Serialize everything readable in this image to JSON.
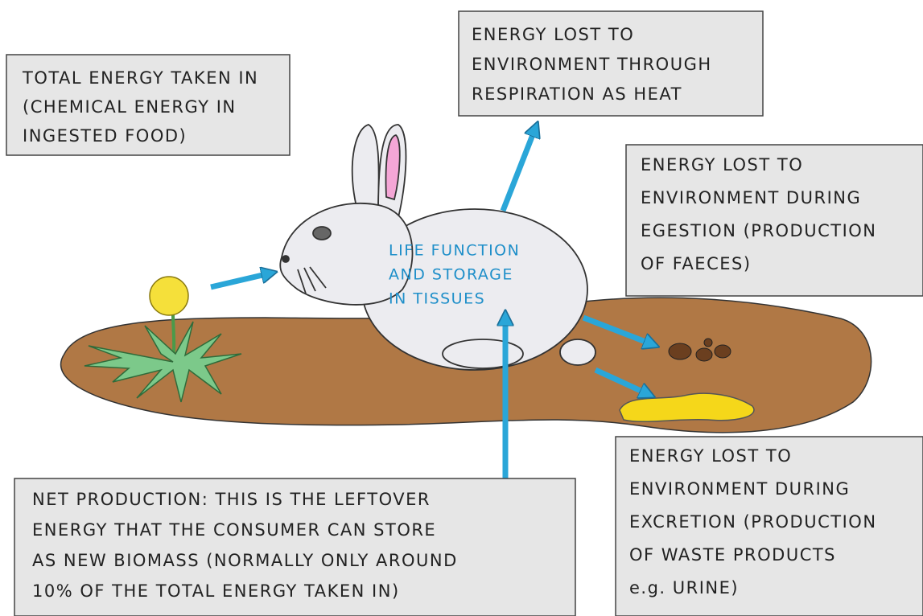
{
  "boxes": [
    {
      "lines": [
        "TOTAL ENERGY TAKEN IN",
        "(CHEMICAL ENERGY IN",
        "INGESTED FOOD)"
      ]
    },
    {
      "lines": [
        "ENERGY LOST TO",
        "ENVIRONMENT THROUGH",
        "RESPIRATION AS HEAT"
      ]
    },
    {
      "lines": [
        "ENERGY LOST TO",
        "ENVIRONMENT DURING",
        "EGESTION (PRODUCTION",
        "OF FAECES)"
      ]
    },
    {
      "lines": [
        "ENERGY LOST TO",
        "ENVIRONMENT DURING",
        "EXCRETION (PRODUCTION",
        "OF WASTE PRODUCTS",
        "e.g. URINE)"
      ]
    },
    {
      "lines": [
        "NET PRODUCTION: THIS IS THE LEFTOVER",
        "ENERGY THAT THE CONSUMER CAN STORE",
        "AS NEW BIOMASS (NORMALLY ONLY AROUND",
        "10% OF THE TOTAL ENERGY TAKEN IN)"
      ]
    }
  ],
  "center_label": {
    "lines": [
      "LIFE FUNCTION",
      "AND STORAGE",
      "IN TISSUES"
    ]
  }
}
